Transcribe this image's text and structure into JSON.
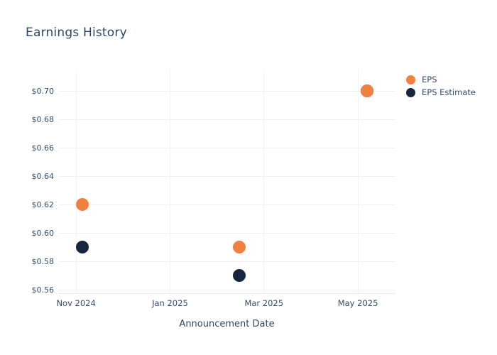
{
  "page": {
    "background": "#ffffff"
  },
  "chart_data": {
    "type": "scatter",
    "title": "Earnings History",
    "xlabel": "Announcement Date",
    "ylabel": "",
    "grid": true,
    "legend_position": "right-outside-top",
    "x_unit": "months since Nov 2024",
    "xlim": [
      -0.38,
      6.8
    ],
    "ylim": [
      0.5575,
      0.715
    ],
    "x_ticks": [
      {
        "v": 0,
        "label": "Nov 2024"
      },
      {
        "v": 2,
        "label": "Jan 2025"
      },
      {
        "v": 4,
        "label": "Mar 2025"
      },
      {
        "v": 6,
        "label": "May 2025"
      }
    ],
    "y_ticks": [
      {
        "v": 0.56,
        "label": "$0.56"
      },
      {
        "v": 0.58,
        "label": "$0.58"
      },
      {
        "v": 0.6,
        "label": "$0.60"
      },
      {
        "v": 0.62,
        "label": "$0.62"
      },
      {
        "v": 0.64,
        "label": "$0.64"
      },
      {
        "v": 0.66,
        "label": "$0.66"
      },
      {
        "v": 0.68,
        "label": "$0.68"
      },
      {
        "v": 0.7,
        "label": "$0.70"
      }
    ],
    "series": [
      {
        "name": "EPS Estimate",
        "color": "#16263E",
        "points": [
          {
            "x": 0.14,
            "y": 0.59
          },
          {
            "x": 3.48,
            "y": 0.57
          },
          {
            "x": 6.2,
            "y": 0.7
          }
        ]
      },
      {
        "name": "EPS",
        "color": "#F0813F",
        "points": [
          {
            "x": 0.14,
            "y": 0.62
          },
          {
            "x": 3.48,
            "y": 0.59
          },
          {
            "x": 6.2,
            "y": 0.7
          }
        ]
      }
    ],
    "marker_diameter_px": 18,
    "colors": {
      "grid": "#EDF1F6",
      "axis_line": "#E7ECF2",
      "title_text": "#2F4668",
      "tick_text": "#374B66"
    }
  }
}
